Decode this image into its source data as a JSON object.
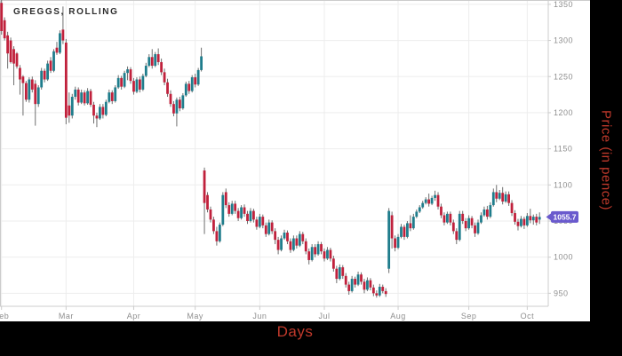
{
  "title": "GREGGS, ROLLING",
  "x_axis": {
    "label": "Days",
    "months": [
      {
        "label": "Feb",
        "index": 0
      },
      {
        "label": "Mar",
        "index": 21
      },
      {
        "label": "Apr",
        "index": 43
      },
      {
        "label": "May",
        "index": 63
      },
      {
        "label": "Jun",
        "index": 84
      },
      {
        "label": "Jul",
        "index": 105
      },
      {
        "label": "Aug",
        "index": 129
      },
      {
        "label": "Sep",
        "index": 152
      },
      {
        "label": "Oct",
        "index": 171
      }
    ]
  },
  "y_axis": {
    "label": "Price (in pence)",
    "ticks": [
      1350,
      1300,
      1250,
      1200,
      1150,
      1100,
      1050,
      1000,
      950
    ]
  },
  "last_price": {
    "value": "1055.7"
  },
  "colors": {
    "up": "#1f7d8c",
    "down": "#c0213c",
    "wick": "#6e6e6e",
    "grid": "#ededed",
    "axis": "#cccccc",
    "tick_label": "#8f8f8f",
    "axis_title": "#c0392b",
    "badge": "#6a5acd",
    "badge_text": "#ffffff",
    "panel_bg": "#ffffff",
    "outer_bg": "#000000",
    "title_color": "#2d2d2d"
  },
  "chart_data": {
    "type": "candlestick",
    "title": "GREGGS, ROLLING",
    "xlabel": "Days",
    "ylabel": "Price (in pence)",
    "ylim": [
      932,
      1356
    ],
    "x_range": [
      "Feb",
      "Oct"
    ],
    "grid": true,
    "last_close": 1055.7,
    "ohlc_format": [
      "open",
      "high",
      "low",
      "close"
    ],
    "candles": [
      [
        1352,
        1360,
        1308,
        1313
      ],
      [
        1328,
        1332,
        1300,
        1303
      ],
      [
        1307,
        1312,
        1261,
        1282
      ],
      [
        1300,
        1304,
        1268,
        1270
      ],
      [
        1288,
        1292,
        1238,
        1268
      ],
      [
        1282,
        1284,
        1261,
        1264
      ],
      [
        1262,
        1266,
        1225,
        1246
      ],
      [
        1250,
        1252,
        1196,
        1241
      ],
      [
        1241,
        1244,
        1215,
        1218
      ],
      [
        1218,
        1249,
        1214,
        1246
      ],
      [
        1246,
        1250,
        1228,
        1232
      ],
      [
        1240,
        1245,
        1182,
        1212
      ],
      [
        1212,
        1238,
        1208,
        1235
      ],
      [
        1235,
        1262,
        1232,
        1258
      ],
      [
        1258,
        1261,
        1242,
        1246
      ],
      [
        1246,
        1272,
        1244,
        1268
      ],
      [
        1272,
        1277,
        1255,
        1258
      ],
      [
        1258,
        1288,
        1256,
        1285
      ],
      [
        1290,
        1298,
        1280,
        1283
      ],
      [
        1283,
        1314,
        1281,
        1310
      ],
      [
        1315,
        1347,
        1295,
        1300
      ],
      [
        1297,
        1302,
        1184,
        1193
      ],
      [
        1210,
        1228,
        1186,
        1196
      ],
      [
        1196,
        1226,
        1192,
        1222
      ],
      [
        1222,
        1236,
        1218,
        1232
      ],
      [
        1232,
        1235,
        1210,
        1214
      ],
      [
        1214,
        1232,
        1212,
        1228
      ],
      [
        1228,
        1231,
        1210,
        1213
      ],
      [
        1213,
        1234,
        1211,
        1230
      ],
      [
        1230,
        1233,
        1208,
        1211
      ],
      [
        1211,
        1215,
        1185,
        1196
      ],
      [
        1196,
        1200,
        1180,
        1192
      ],
      [
        1192,
        1212,
        1190,
        1208
      ],
      [
        1208,
        1212,
        1192,
        1197
      ],
      [
        1197,
        1218,
        1195,
        1215
      ],
      [
        1215,
        1232,
        1213,
        1228
      ],
      [
        1228,
        1231,
        1212,
        1216
      ],
      [
        1216,
        1238,
        1214,
        1235
      ],
      [
        1235,
        1252,
        1233,
        1248
      ],
      [
        1248,
        1251,
        1232,
        1236
      ],
      [
        1236,
        1258,
        1234,
        1255
      ],
      [
        1255,
        1264,
        1245,
        1260
      ],
      [
        1260,
        1263,
        1240,
        1244
      ],
      [
        1244,
        1248,
        1225,
        1229
      ],
      [
        1229,
        1249,
        1227,
        1246
      ],
      [
        1246,
        1250,
        1228,
        1232
      ],
      [
        1232,
        1254,
        1230,
        1251
      ],
      [
        1251,
        1269,
        1249,
        1265
      ],
      [
        1265,
        1281,
        1263,
        1277
      ],
      [
        1277,
        1288,
        1261,
        1265
      ],
      [
        1265,
        1284,
        1263,
        1281
      ],
      [
        1281,
        1289,
        1266,
        1270
      ],
      [
        1270,
        1275,
        1252,
        1256
      ],
      [
        1256,
        1261,
        1238,
        1242
      ],
      [
        1242,
        1247,
        1222,
        1226
      ],
      [
        1226,
        1231,
        1208,
        1212
      ],
      [
        1212,
        1216,
        1195,
        1199
      ],
      [
        1199,
        1221,
        1181,
        1218
      ],
      [
        1218,
        1222,
        1202,
        1206
      ],
      [
        1206,
        1227,
        1204,
        1224
      ],
      [
        1224,
        1243,
        1222,
        1240
      ],
      [
        1240,
        1244,
        1226,
        1230
      ],
      [
        1230,
        1252,
        1228,
        1249
      ],
      [
        1249,
        1254,
        1235,
        1239
      ],
      [
        1239,
        1262,
        1237,
        1259
      ],
      [
        1259,
        1290,
        1257,
        1278
      ],
      [
        1120,
        1124,
        1032,
        1075
      ],
      [
        1086,
        1090,
        1062,
        1066
      ],
      [
        1066,
        1070,
        1048,
        1052
      ],
      [
        1052,
        1056,
        1032,
        1036
      ],
      [
        1036,
        1042,
        1016,
        1022
      ],
      [
        1022,
        1048,
        1020,
        1045
      ],
      [
        1045,
        1090,
        1043,
        1086
      ],
      [
        1090,
        1095,
        1068,
        1072
      ],
      [
        1072,
        1076,
        1056,
        1060
      ],
      [
        1060,
        1078,
        1058,
        1074
      ],
      [
        1074,
        1078,
        1060,
        1064
      ],
      [
        1064,
        1068,
        1050,
        1054
      ],
      [
        1054,
        1072,
        1052,
        1069
      ],
      [
        1069,
        1073,
        1056,
        1060
      ],
      [
        1060,
        1064,
        1046,
        1050
      ],
      [
        1050,
        1068,
        1048,
        1064
      ],
      [
        1064,
        1067,
        1048,
        1052
      ],
      [
        1052,
        1056,
        1038,
        1042
      ],
      [
        1042,
        1060,
        1040,
        1056
      ],
      [
        1056,
        1059,
        1040,
        1044
      ],
      [
        1044,
        1048,
        1028,
        1032
      ],
      [
        1032,
        1052,
        1030,
        1048
      ],
      [
        1048,
        1051,
        1032,
        1036
      ],
      [
        1036,
        1040,
        1018,
        1024
      ],
      [
        1024,
        1028,
        1004,
        1010
      ],
      [
        1010,
        1030,
        1008,
        1026
      ],
      [
        1026,
        1038,
        1024,
        1034
      ],
      [
        1034,
        1037,
        1018,
        1022
      ],
      [
        1022,
        1026,
        1006,
        1010
      ],
      [
        1010,
        1030,
        1008,
        1026
      ],
      [
        1026,
        1030,
        1012,
        1016
      ],
      [
        1016,
        1036,
        1014,
        1032
      ],
      [
        1032,
        1035,
        1018,
        1022
      ],
      [
        1022,
        1026,
        1004,
        1008
      ],
      [
        1008,
        1012,
        990,
        996
      ],
      [
        996,
        1018,
        994,
        1014
      ],
      [
        1014,
        1018,
        1000,
        1004
      ],
      [
        1004,
        1022,
        1002,
        1018
      ],
      [
        1018,
        1021,
        1004,
        1008
      ],
      [
        1008,
        1012,
        994,
        998
      ],
      [
        998,
        1014,
        996,
        1010
      ],
      [
        1010,
        1013,
        994,
        998
      ],
      [
        998,
        1002,
        980,
        984
      ],
      [
        984,
        988,
        964,
        970
      ],
      [
        970,
        990,
        968,
        986
      ],
      [
        986,
        989,
        970,
        974
      ],
      [
        974,
        978,
        958,
        962
      ],
      [
        962,
        966,
        948,
        953
      ],
      [
        953,
        974,
        951,
        970
      ],
      [
        970,
        973,
        958,
        962
      ],
      [
        962,
        980,
        960,
        976
      ],
      [
        976,
        979,
        962,
        966
      ],
      [
        966,
        970,
        950,
        955
      ],
      [
        955,
        972,
        953,
        968
      ],
      [
        968,
        971,
        954,
        958
      ],
      [
        958,
        962,
        946,
        950
      ],
      [
        950,
        954,
        944,
        947
      ],
      [
        947,
        963,
        945,
        959
      ],
      [
        959,
        962,
        950,
        953
      ],
      [
        953,
        957,
        945,
        949
      ],
      [
        984,
        1068,
        978,
        1064
      ],
      [
        1058,
        1063,
        1012,
        1026
      ],
      [
        1026,
        1030,
        1008,
        1013
      ],
      [
        1013,
        1032,
        1011,
        1028
      ],
      [
        1028,
        1046,
        1026,
        1042
      ],
      [
        1042,
        1045,
        1024,
        1028
      ],
      [
        1028,
        1050,
        1026,
        1047
      ],
      [
        1047,
        1058,
        1036,
        1040
      ],
      [
        1040,
        1060,
        1038,
        1056
      ],
      [
        1056,
        1066,
        1054,
        1063
      ],
      [
        1063,
        1072,
        1061,
        1069
      ],
      [
        1069,
        1078,
        1067,
        1075
      ],
      [
        1075,
        1083,
        1073,
        1080
      ],
      [
        1080,
        1088,
        1070,
        1074
      ],
      [
        1074,
        1085,
        1072,
        1082
      ],
      [
        1082,
        1092,
        1078,
        1086
      ],
      [
        1086,
        1090,
        1066,
        1070
      ],
      [
        1070,
        1074,
        1054,
        1058
      ],
      [
        1058,
        1062,
        1044,
        1048
      ],
      [
        1048,
        1063,
        1046,
        1060
      ],
      [
        1060,
        1063,
        1044,
        1048
      ],
      [
        1048,
        1052,
        1032,
        1036
      ],
      [
        1036,
        1040,
        1018,
        1024
      ],
      [
        1024,
        1064,
        1022,
        1060
      ],
      [
        1060,
        1064,
        1046,
        1050
      ],
      [
        1050,
        1054,
        1036,
        1040
      ],
      [
        1040,
        1058,
        1038,
        1054
      ],
      [
        1054,
        1057,
        1040,
        1044
      ],
      [
        1044,
        1048,
        1028,
        1033
      ],
      [
        1033,
        1052,
        1031,
        1048
      ],
      [
        1048,
        1062,
        1046,
        1058
      ],
      [
        1058,
        1070,
        1056,
        1066
      ],
      [
        1066,
        1071,
        1052,
        1056
      ],
      [
        1056,
        1076,
        1054,
        1072
      ],
      [
        1072,
        1095,
        1070,
        1090
      ],
      [
        1090,
        1100,
        1076,
        1081
      ],
      [
        1081,
        1093,
        1079,
        1089
      ],
      [
        1089,
        1097,
        1073,
        1077
      ],
      [
        1077,
        1091,
        1075,
        1087
      ],
      [
        1087,
        1091,
        1071,
        1075
      ],
      [
        1075,
        1079,
        1057,
        1061
      ],
      [
        1061,
        1065,
        1045,
        1049
      ],
      [
        1049,
        1053,
        1037,
        1043
      ],
      [
        1043,
        1057,
        1041,
        1053
      ],
      [
        1053,
        1056,
        1039,
        1044
      ],
      [
        1044,
        1061,
        1042,
        1057
      ],
      [
        1057,
        1067,
        1047,
        1051
      ],
      [
        1051,
        1059,
        1045,
        1056
      ],
      [
        1056,
        1060,
        1044,
        1048
      ],
      [
        1052,
        1062,
        1046,
        1055.7
      ]
    ]
  }
}
